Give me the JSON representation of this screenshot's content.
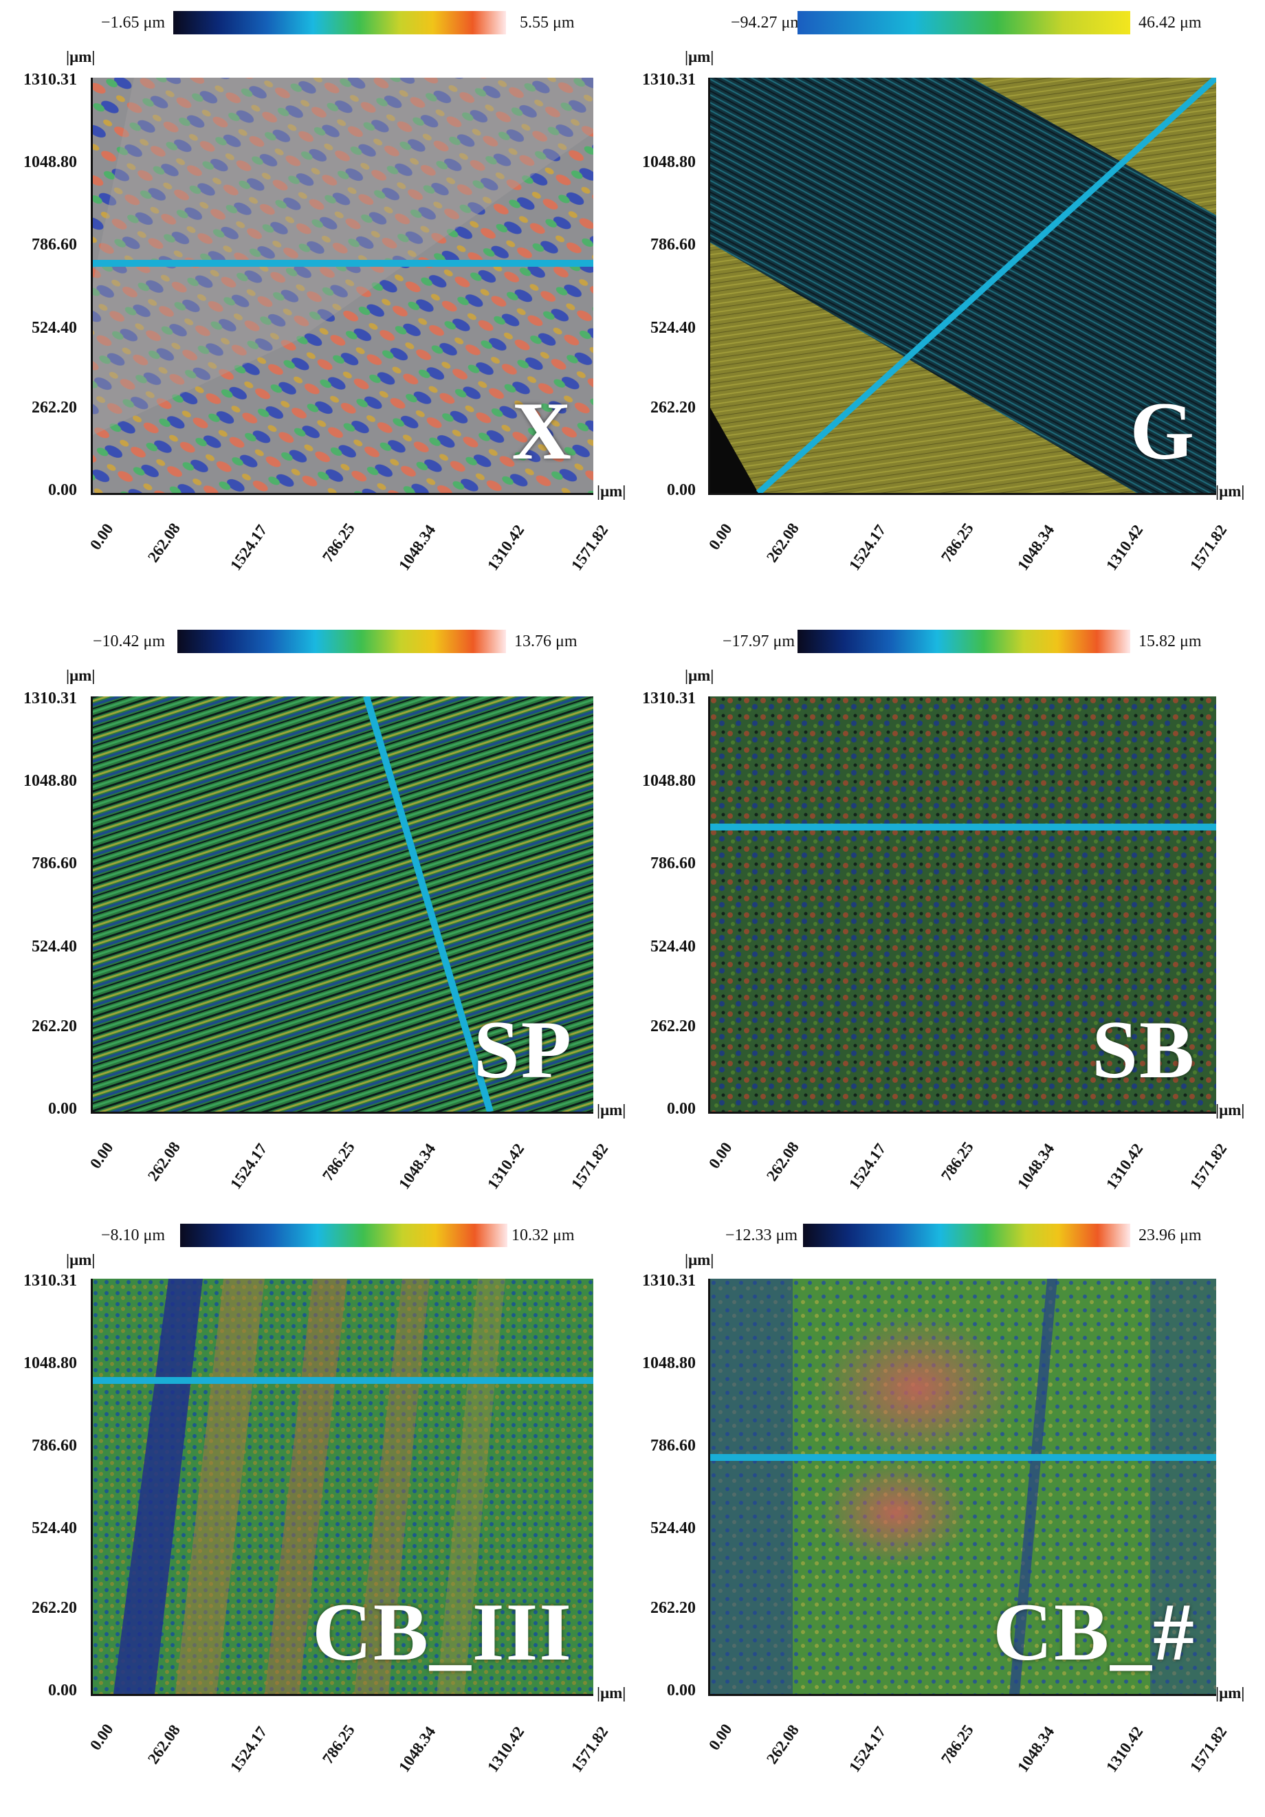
{
  "axis_unit": "|μm|",
  "y_ticks": [
    "1310.31",
    "1048.80",
    "786.60",
    "524.40",
    "262.20",
    "0.00"
  ],
  "x_ticks": [
    "0.00",
    "262.08",
    "1524.17",
    "786.25",
    "1048.34",
    "1310.42",
    "1571.82"
  ],
  "panels": [
    {
      "label": "X",
      "cbar_min": "−1.65 μm",
      "cbar_max": "5.55 μm",
      "texture": "mottled-grey"
    },
    {
      "label": "G",
      "cbar_min": "−94.27 μm",
      "cbar_max": "46.42 μm",
      "texture": "ground"
    },
    {
      "label": "SP",
      "cbar_min": "−10.42 μm",
      "cbar_max": "13.76 μm",
      "texture": "striated"
    },
    {
      "label": "SB",
      "cbar_min": "−17.97 μm",
      "cbar_max": "15.82 μm",
      "texture": "speckle"
    },
    {
      "label": "CB_III",
      "cbar_min": "−8.10 μm",
      "cbar_max": "10.32 μm",
      "texture": "bands"
    },
    {
      "label": "CB_#",
      "cbar_min": "−12.33 μm",
      "cbar_max": "23.96 μm",
      "texture": "blotch"
    }
  ],
  "colors": {
    "profile_line": "#1aaed6",
    "axis": "#111111"
  }
}
